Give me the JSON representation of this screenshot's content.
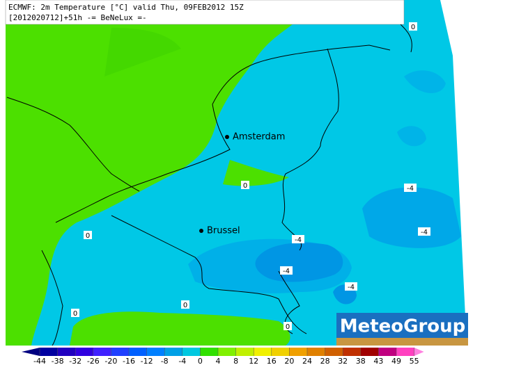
{
  "header": {
    "line1": "ECMWF: 2m Temperature [°C] valid Thu, 09FEB2012 15Z",
    "line2": "[2012020712]+51h -= BeNeLux =-"
  },
  "cities": [
    "Amsterdam",
    "Brussel"
  ],
  "contour_labels": [
    "0",
    "0",
    "0",
    "0",
    "0",
    "0",
    "-4",
    "-4",
    "-4",
    "-4",
    "-4"
  ],
  "logo": "MeteoGroup",
  "legend": {
    "ticks": [
      -44,
      -38,
      -32,
      -26,
      -20,
      -16,
      -12,
      -8,
      -4,
      0,
      4,
      8,
      12,
      16,
      20,
      24,
      28,
      32,
      38,
      43,
      49,
      55
    ],
    "colors": [
      "#000080",
      "#0000a0",
      "#2000c0",
      "#3000e0",
      "#4020ff",
      "#2040ff",
      "#0060ff",
      "#0080ff",
      "#00a0e6",
      "#00c8e0",
      "#30e000",
      "#80f000",
      "#c0f000",
      "#f0f000",
      "#f0d000",
      "#f0a000",
      "#e08000",
      "#d06000",
      "#c03000",
      "#a00000",
      "#c00080",
      "#ff40c0",
      "#ff80e0"
    ]
  }
}
